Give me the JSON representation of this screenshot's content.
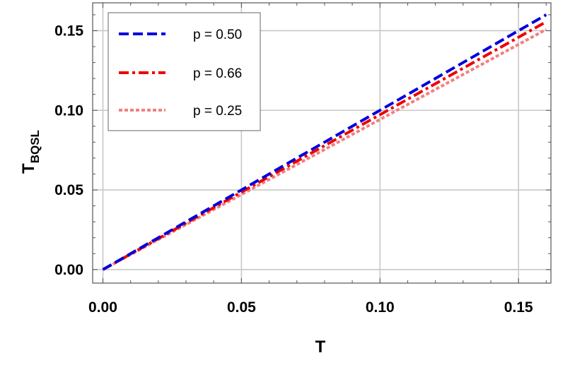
{
  "chart_data": {
    "type": "line",
    "xlabel": "T",
    "ylabel_main": "T",
    "ylabel_sub": "BQSL",
    "xlim": [
      -0.0037,
      0.1617
    ],
    "ylim": [
      -0.0085,
      0.1675
    ],
    "xticks": [
      0.0,
      0.05,
      0.1,
      0.15
    ],
    "xtick_labels": [
      "0.00",
      "0.05",
      "0.10",
      "0.15"
    ],
    "yticks": [
      0.0,
      0.05,
      0.1,
      0.15
    ],
    "ytick_labels": [
      "0.00",
      "0.05",
      "0.10",
      "0.15"
    ],
    "grid": true,
    "legend_position": "top-left",
    "series": [
      {
        "name": "p = 0.50",
        "color": "#0000dd",
        "style": "dashed",
        "x": [
          0,
          0.16
        ],
        "y": [
          0,
          0.16
        ]
      },
      {
        "name": "p = 0.66",
        "color": "#ee0000",
        "style": "dashdot",
        "x": [
          0,
          0.16
        ],
        "y": [
          0,
          0.1556
        ]
      },
      {
        "name": "p = 0.25",
        "color": "#f08080",
        "style": "dotted",
        "x": [
          0,
          0.16
        ],
        "y": [
          0,
          0.1508
        ]
      }
    ]
  }
}
